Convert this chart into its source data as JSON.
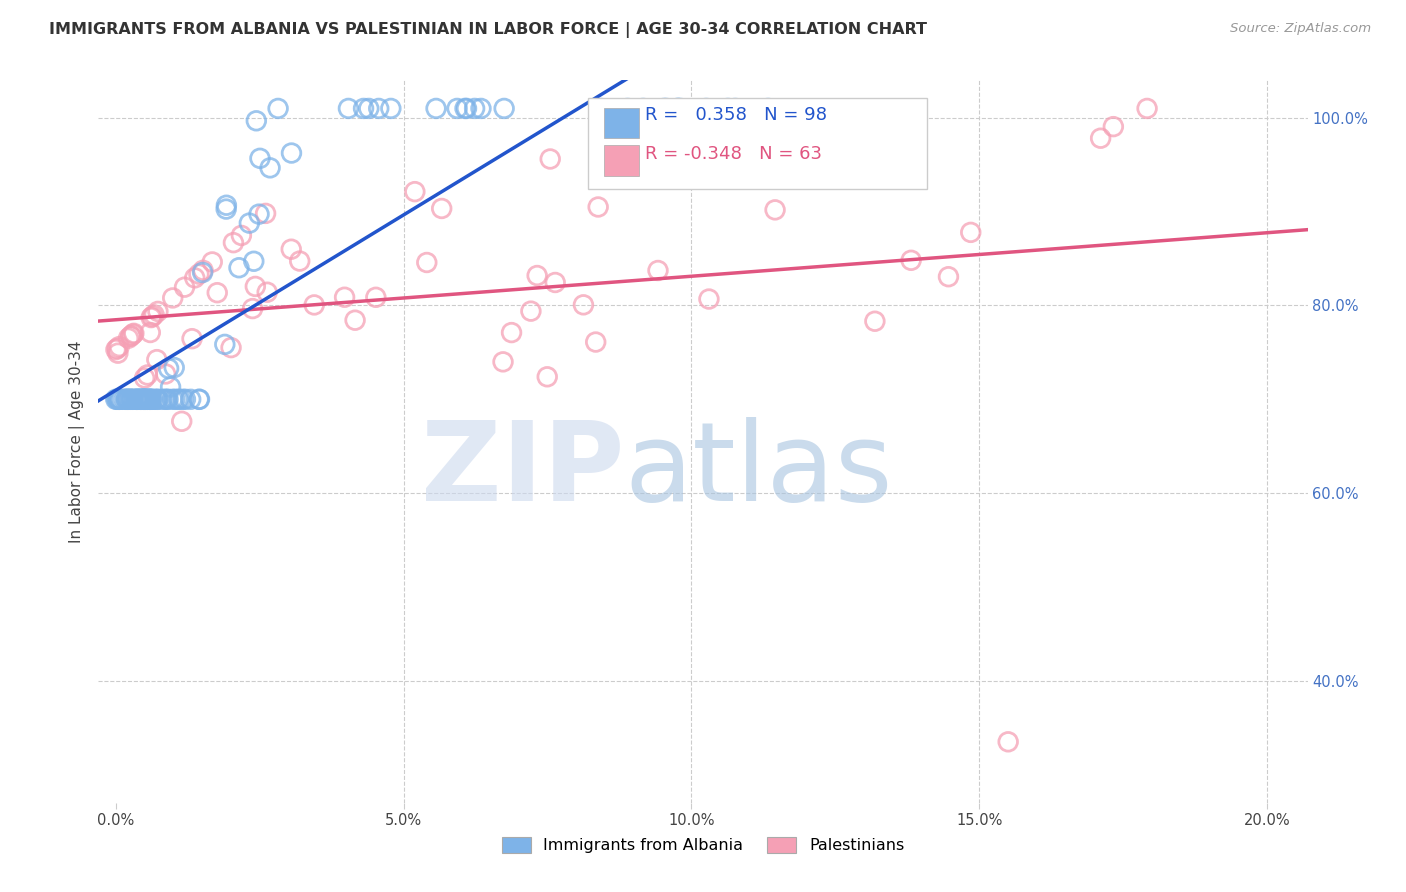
{
  "title": "IMMIGRANTS FROM ALBANIA VS PALESTINIAN IN LABOR FORCE | AGE 30-34 CORRELATION CHART",
  "source": "Source: ZipAtlas.com",
  "xlabel_ticks": [
    "0.0%",
    "5.0%",
    "10.0%",
    "15.0%",
    "20.0%"
  ],
  "xlabel_vals": [
    0.0,
    0.05,
    0.1,
    0.15,
    0.2
  ],
  "ylabel": "In Labor Force | Age 30-34",
  "ylabel_ticks": [
    "40.0%",
    "60.0%",
    "80.0%",
    "100.0%"
  ],
  "ylabel_vals": [
    0.4,
    0.6,
    0.8,
    1.0
  ],
  "ylim": [
    0.27,
    1.04
  ],
  "xlim": [
    -0.003,
    0.207
  ],
  "albania_color": "#7EB3E8",
  "palestine_color": "#F5A0B5",
  "albania_line_color": "#2255CC",
  "palestine_line_color": "#E05580",
  "albania_R": 0.358,
  "albania_N": 98,
  "palestine_R": -0.348,
  "palestine_N": 63,
  "legend_label_albania": "Immigrants from Albania",
  "legend_label_palestine": "Palestinians",
  "background_color": "#ffffff",
  "grid_color": "#cccccc",
  "title_color": "#333333"
}
